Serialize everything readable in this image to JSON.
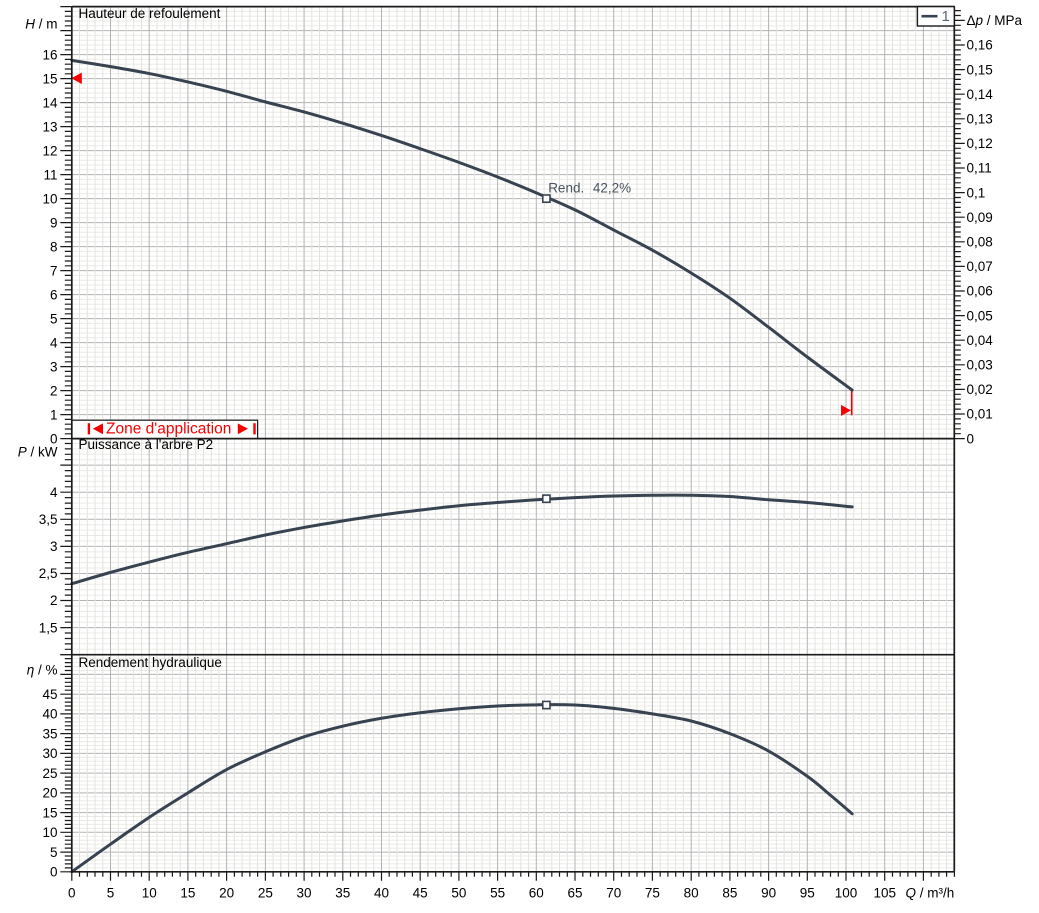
{
  "colors": {
    "background": "#ffffff",
    "plot_background": "#ffffff",
    "grid_minor": "#e3e3de",
    "grid_minor_h": "#ebebe6",
    "grid_major": "#b4b4b4",
    "axis": "#1a1a1a",
    "curve": "#374350",
    "marker_fill": "#ffffff",
    "annotation_text": "#49525f",
    "legend_number": "#5c6673",
    "red": "#f80000",
    "text": "#000000"
  },
  "legend": {
    "series_label": "1"
  },
  "x_axis": {
    "title": {
      "symbol": "Q",
      "suffix": " / m³/h"
    },
    "min": 0,
    "max": 114,
    "tick_minor": 1,
    "tick_major": 5,
    "tick_values": [
      0,
      5,
      10,
      15,
      20,
      25,
      30,
      35,
      40,
      45,
      50,
      55,
      60,
      65,
      70,
      75,
      80,
      85,
      90,
      95,
      100,
      105
    ],
    "tick_labels": [
      "0",
      "5",
      "10",
      "15",
      "20",
      "25",
      "30",
      "35",
      "40",
      "45",
      "50",
      "55",
      "60",
      "65",
      "70",
      "75",
      "80",
      "85",
      "90",
      "95",
      "100",
      "105"
    ]
  },
  "chart_data": [
    {
      "id": "head",
      "type": "line",
      "title": "Hauteur de refoulement",
      "y_axis": {
        "title": {
          "symbol": "H",
          "suffix": " / m"
        },
        "min": 0,
        "max": 18,
        "tick_minor": 0.2,
        "tick_major": 1,
        "tick_values": [
          0,
          1,
          2,
          3,
          4,
          5,
          6,
          7,
          8,
          9,
          10,
          11,
          12,
          13,
          14,
          15,
          16
        ],
        "tick_labels": [
          "0",
          "1",
          "2",
          "3",
          "4",
          "5",
          "6",
          "7",
          "8",
          "9",
          "10",
          "11",
          "12",
          "13",
          "14",
          "15",
          "16"
        ]
      },
      "y_axis_right": {
        "title": {
          "prefix": "Δ",
          "symbol": "p",
          "suffix": " / MPa"
        },
        "min": 0,
        "max": 0.1756,
        "tick_minor": 0.002,
        "tick_major": 0.01,
        "tick_values": [
          0,
          0.01,
          0.02,
          0.03,
          0.04,
          0.05,
          0.06,
          0.07,
          0.08,
          0.09,
          0.1,
          0.11,
          0.12,
          0.13,
          0.14,
          0.15,
          0.16
        ],
        "tick_labels": [
          "0",
          "0,01",
          "0,02",
          "0,03",
          "0,04",
          "0,05",
          "0,06",
          "0,07",
          "0,08",
          "0,09",
          "0,1",
          "0,11",
          "0,12",
          "0,13",
          "0,14",
          "0,15",
          "0,16"
        ]
      },
      "series": [
        {
          "name": "1",
          "points": [
            [
              0,
              15.76
            ],
            [
              5,
              15.5
            ],
            [
              10,
              15.21
            ],
            [
              15,
              14.86
            ],
            [
              20,
              14.47
            ],
            [
              25,
              14.03
            ],
            [
              30,
              13.61
            ],
            [
              35,
              13.14
            ],
            [
              40,
              12.63
            ],
            [
              45,
              12.08
            ],
            [
              50,
              11.51
            ],
            [
              55,
              10.9
            ],
            [
              60,
              10.24
            ],
            [
              65,
              9.53
            ],
            [
              70,
              8.69
            ],
            [
              75,
              7.85
            ],
            [
              80,
              6.9
            ],
            [
              85,
              5.85
            ],
            [
              90,
              4.64
            ],
            [
              95,
              3.4
            ],
            [
              100.8,
              2.02
            ]
          ]
        }
      ],
      "operating_point": {
        "q": 61.3,
        "value": 10.0
      },
      "operating_label": {
        "text": "Rend.",
        "value_text": "42,2%"
      },
      "application_zone": {
        "text": "Zone d'application",
        "q_from": 0,
        "q_to": 24.0,
        "min_marker": {
          "q": 0,
          "head": 15.0
        },
        "max_marker": {
          "q": 100.74,
          "head_from": 2.02,
          "head_to": 0.97
        }
      }
    },
    {
      "id": "power",
      "type": "line",
      "title": "Puissance à l'arbre P2",
      "y_axis": {
        "title": {
          "symbol": "P",
          "suffix": " / kW"
        },
        "min": 1.0,
        "max": 4.99,
        "tick_minor": 0.1,
        "tick_major": 0.5,
        "tick_values": [
          1.5,
          2,
          2.5,
          3,
          3.5,
          4
        ],
        "tick_labels": [
          "1,5",
          "2",
          "2,5",
          "3",
          "3,5",
          "4"
        ]
      },
      "series": [
        {
          "name": "1",
          "points": [
            [
              0,
              2.31
            ],
            [
              5,
              2.52
            ],
            [
              10,
              2.71
            ],
            [
              15,
              2.89
            ],
            [
              20,
              3.05
            ],
            [
              25,
              3.21
            ],
            [
              30,
              3.35
            ],
            [
              35,
              3.47
            ],
            [
              40,
              3.58
            ],
            [
              45,
              3.67
            ],
            [
              50,
              3.75
            ],
            [
              55,
              3.81
            ],
            [
              60,
              3.86
            ],
            [
              65,
              3.9
            ],
            [
              70,
              3.93
            ],
            [
              75,
              3.945
            ],
            [
              80,
              3.945
            ],
            [
              85,
              3.92
            ],
            [
              90,
              3.86
            ],
            [
              95,
              3.81
            ],
            [
              100.8,
              3.73
            ]
          ]
        }
      ],
      "operating_point": {
        "q": 61.3,
        "value": 3.88
      }
    },
    {
      "id": "efficiency",
      "type": "line",
      "title": "Rendement hydraulique",
      "y_axis": {
        "title": {
          "symbol": "η",
          "suffix": " / %"
        },
        "min": 0,
        "max": 55,
        "tick_minor": 1,
        "tick_major": 5,
        "tick_values": [
          0,
          5,
          10,
          15,
          20,
          25,
          30,
          35,
          40,
          45
        ],
        "tick_labels": [
          "0",
          "5",
          "10",
          "15",
          "20",
          "25",
          "30",
          "35",
          "40",
          "45"
        ]
      },
      "series": [
        {
          "name": "1",
          "points": [
            [
              0,
              0
            ],
            [
              5,
              7.0
            ],
            [
              10,
              13.8
            ],
            [
              15,
              20.0
            ],
            [
              20,
              25.9
            ],
            [
              25,
              30.4
            ],
            [
              30,
              34.2
            ],
            [
              35,
              36.9
            ],
            [
              40,
              38.9
            ],
            [
              45,
              40.3
            ],
            [
              50,
              41.3
            ],
            [
              55,
              42.0
            ],
            [
              60,
              42.3
            ],
            [
              65,
              42.25
            ],
            [
              70,
              41.4
            ],
            [
              75,
              40.0
            ],
            [
              80,
              38.2
            ],
            [
              85,
              35.0
            ],
            [
              90,
              30.6
            ],
            [
              95,
              24.2
            ],
            [
              98,
              19.4
            ],
            [
              100.8,
              14.7
            ]
          ]
        }
      ],
      "operating_point": {
        "q": 61.3,
        "value": 42.25
      }
    }
  ]
}
